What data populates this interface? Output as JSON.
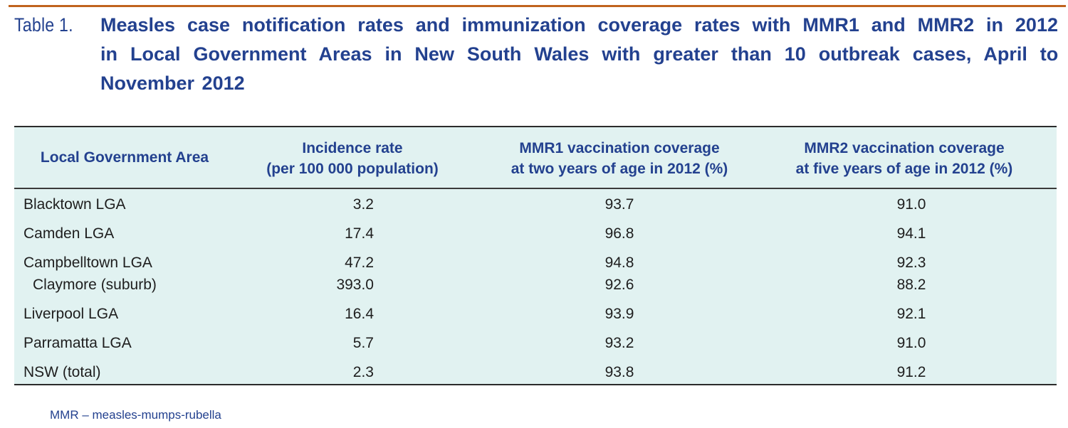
{
  "caption": {
    "label": "Table 1.",
    "lines": [
      "Measles case notification rates and immunization coverage rates with MMR1 and MMR2 in 2012",
      "in Local Government Areas in New South Wales with greater than 10 outbreak cases, April to",
      "November 2012"
    ]
  },
  "colors": {
    "accent_rule": "#c0631e",
    "heading_text": "#23418f",
    "table_background": "#e1f2f1"
  },
  "table": {
    "headers": [
      [
        "Local Government Area"
      ],
      [
        "Incidence rate",
        "(per 100 000 population)"
      ],
      [
        "MMR1 vaccination coverage",
        "at two years of age in 2012 (%)"
      ],
      [
        "MMR2 vaccination coverage",
        "at five years of age in 2012 (%)"
      ]
    ],
    "rows": [
      {
        "name": "Blacktown LGA",
        "incidence": "3.2",
        "mmr1": "93.7",
        "mmr2": "91.0",
        "sub": false
      },
      {
        "name": "Camden LGA",
        "incidence": "17.4",
        "mmr1": "96.8",
        "mmr2": "94.1",
        "sub": false
      },
      {
        "name": "Campbelltown LGA",
        "incidence": "47.2",
        "mmr1": "94.8",
        "mmr2": "92.3",
        "sub": false
      },
      {
        "name": "Claymore (suburb)",
        "incidence": "393.0",
        "mmr1": "92.6",
        "mmr2": "88.2",
        "sub": true
      },
      {
        "name": "Liverpool LGA",
        "incidence": "16.4",
        "mmr1": "93.9",
        "mmr2": "92.1",
        "sub": false
      },
      {
        "name": "Parramatta LGA",
        "incidence": "5.7",
        "mmr1": "93.2",
        "mmr2": "91.0",
        "sub": false
      },
      {
        "name": "NSW (total)",
        "incidence": "2.3",
        "mmr1": "93.8",
        "mmr2": "91.2",
        "sub": false
      }
    ]
  },
  "footnote": "MMR – measles-mumps-rubella"
}
